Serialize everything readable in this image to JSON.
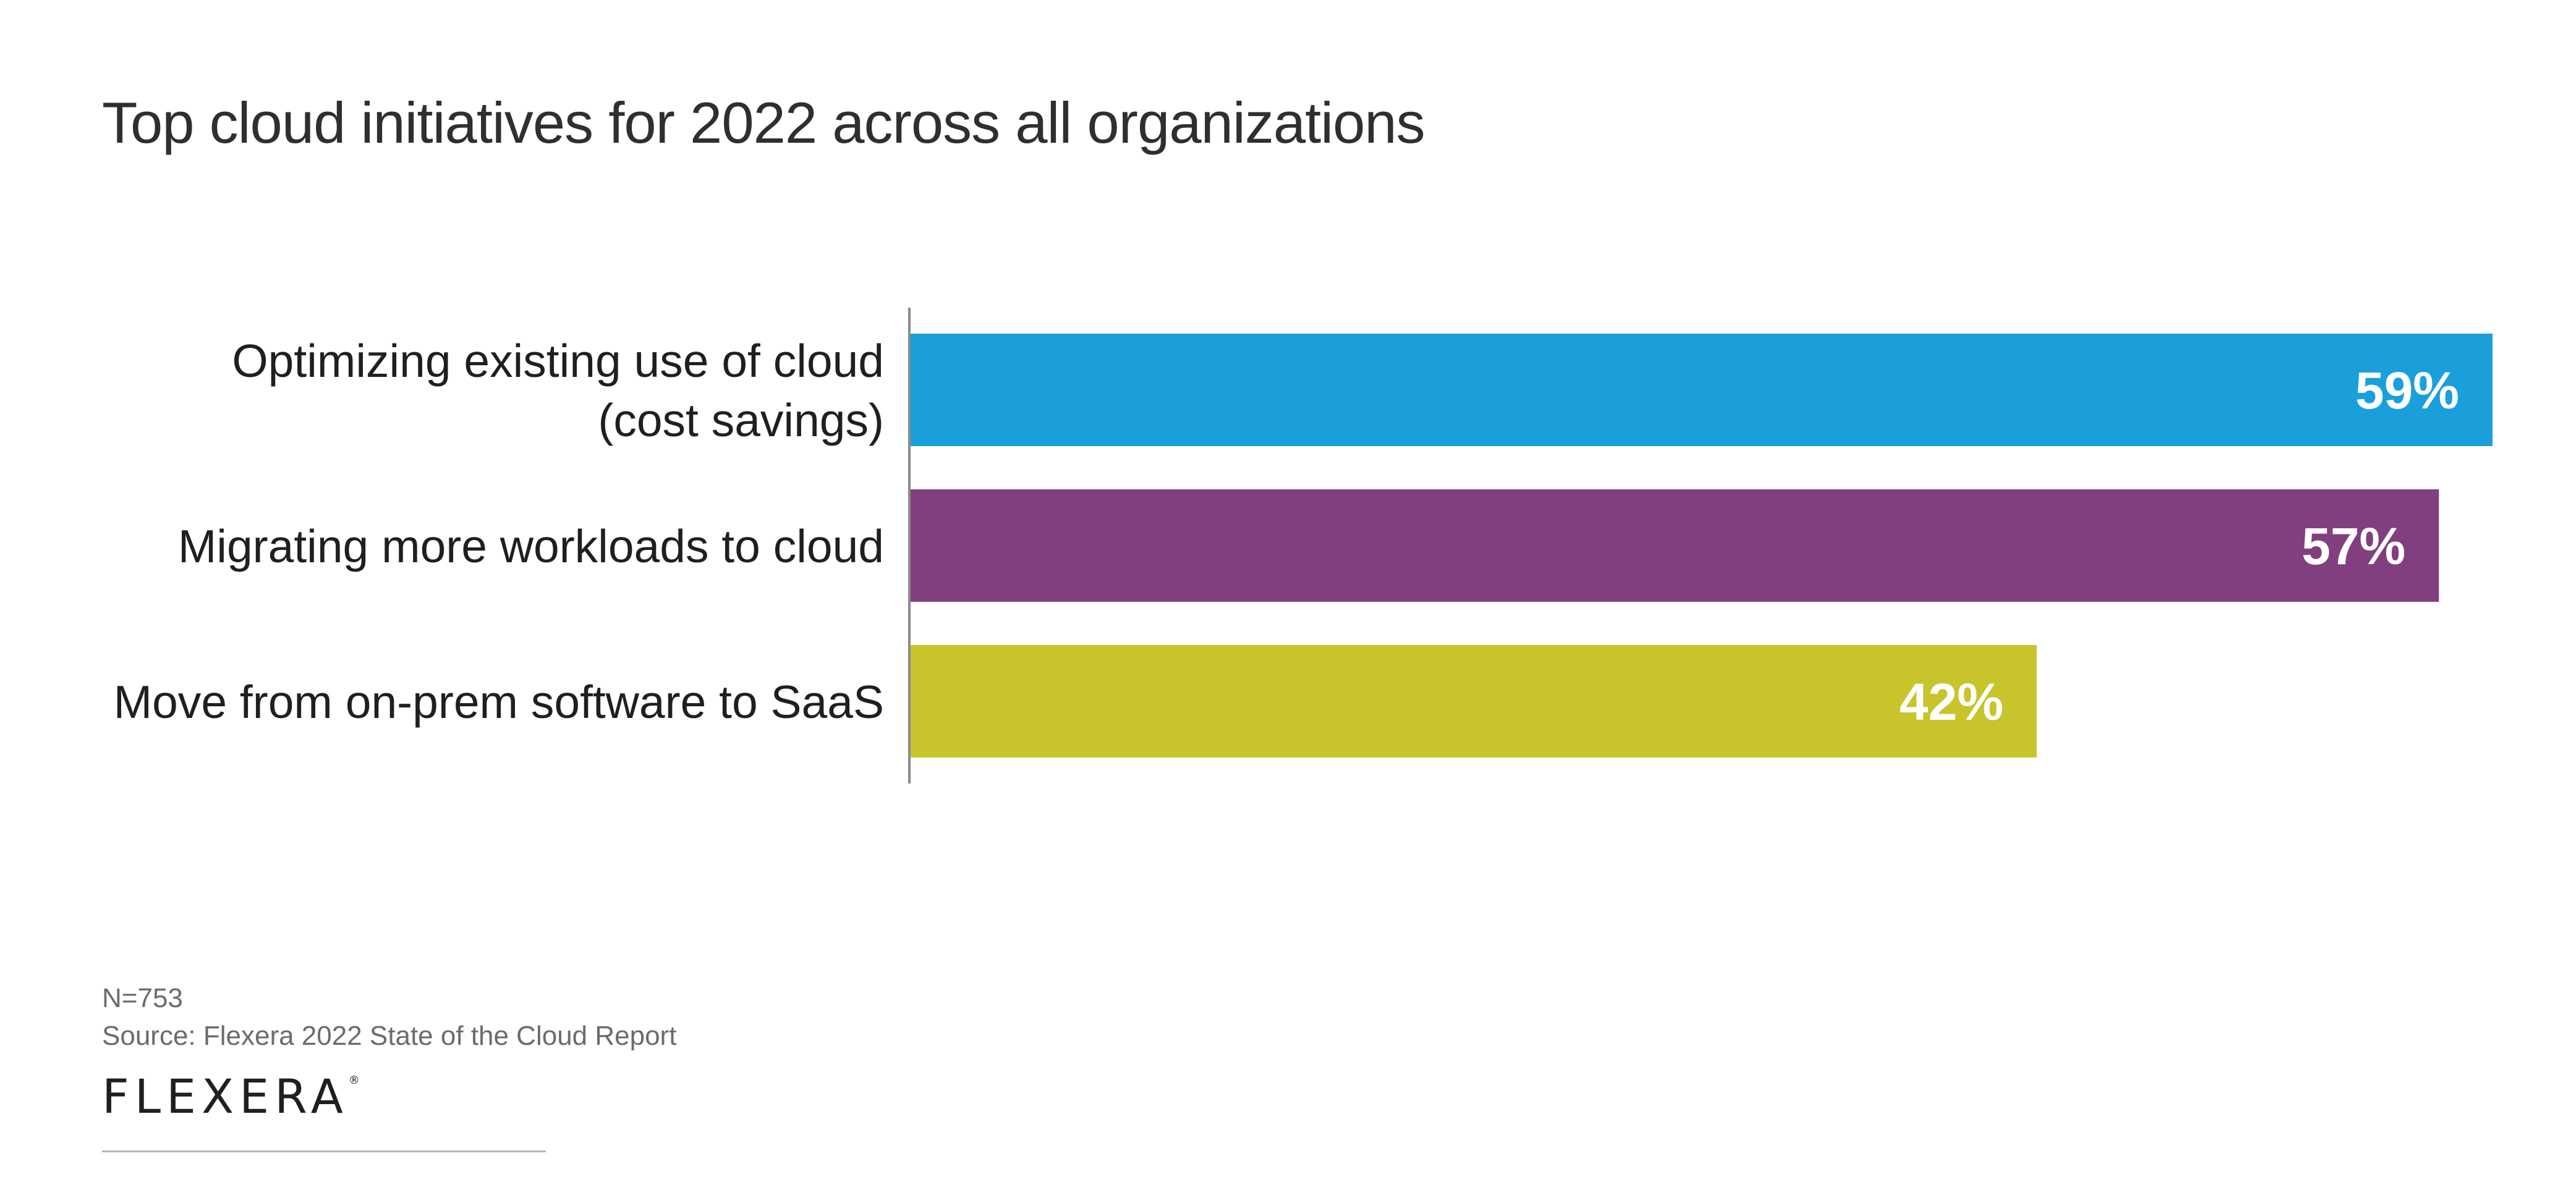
{
  "chart_data": {
    "type": "bar",
    "orientation": "horizontal",
    "title": "Top cloud initiatives for 2022 across all organizations",
    "categories": [
      [
        "Optimizing existing use of cloud",
        "(cost savings)"
      ],
      [
        "Migrating more workloads to cloud"
      ],
      [
        "Move from on-prem software to SaaS"
      ]
    ],
    "values": [
      59,
      57,
      42
    ],
    "value_labels": [
      "59%",
      "57%",
      "42%"
    ],
    "unit": "%",
    "colors": [
      "#1a9fdb",
      "#823f80",
      "#c8c42c"
    ],
    "xlim": [
      0,
      59
    ],
    "grid": false,
    "legend": "none",
    "xlabel": "",
    "ylabel": ""
  },
  "footnote": {
    "sample_size": "N=753",
    "source": "Source: Flexera 2022 State of the Cloud Report"
  },
  "brand": {
    "logo_text": "FLEXERA",
    "trademark": "®"
  }
}
